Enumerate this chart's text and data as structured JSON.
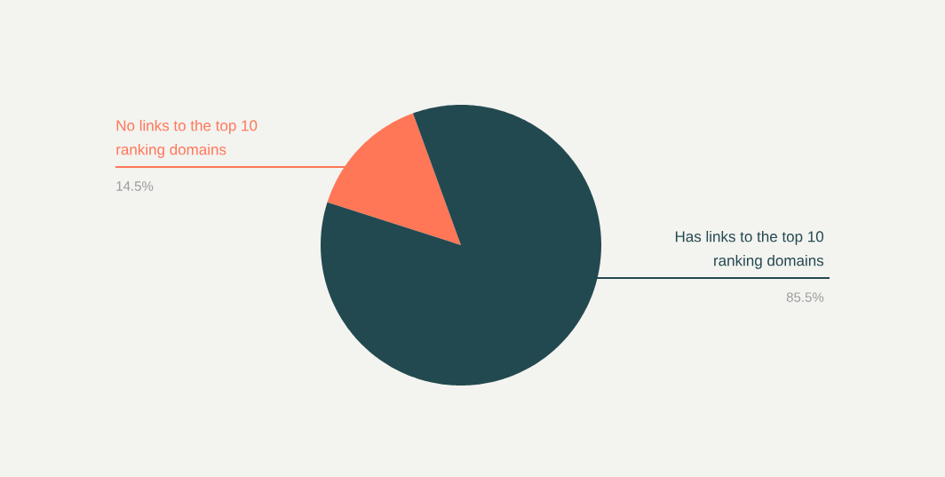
{
  "chart_data": {
    "type": "pie",
    "categories": [
      "No links to the top 10 ranking domains",
      "Has links to the top 10 ranking domains"
    ],
    "values": [
      14.5,
      85.5
    ],
    "colors": [
      "#ff7757",
      "#234950"
    ],
    "value_labels": [
      "14.5%",
      "85.5%"
    ]
  }
}
